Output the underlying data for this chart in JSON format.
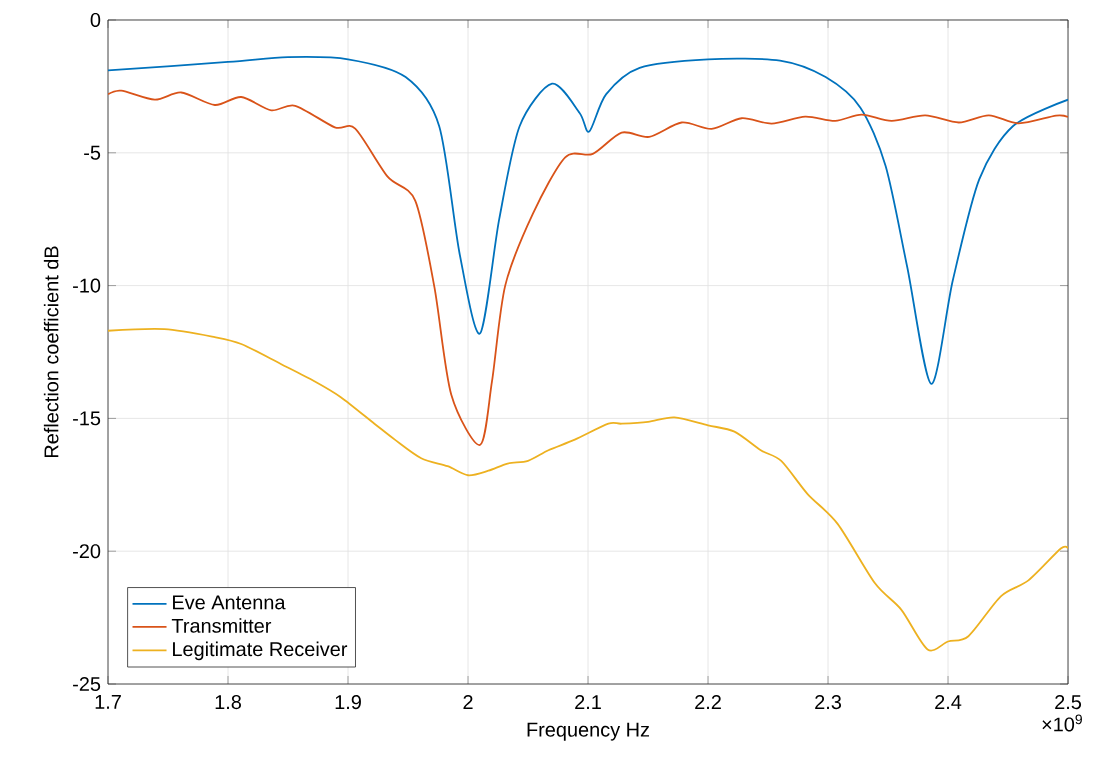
{
  "chart_data": {
    "type": "line",
    "xlabel": "Frequency Hz",
    "ylabel": "Reflection coefficient  dB",
    "xlim": [
      1.7,
      2.5
    ],
    "ylim": [
      -25,
      0
    ],
    "xticks": [
      1.7,
      1.8,
      1.9,
      2,
      2.1,
      2.2,
      2.3,
      2.4,
      2.5
    ],
    "yticks": [
      -25,
      -20,
      -15,
      -10,
      -5,
      0
    ],
    "grid": true,
    "legend": "bottom left",
    "line_style": "solid",
    "marker": "none",
    "annotations": [
      "×10$^{9}$"
    ],
    "series": [
      {
        "name": "Eve Antenna",
        "color": "#0072bd",
        "x": [
          1.7,
          1.8,
          1.85,
          1.9,
          1.948,
          1.976,
          1.993,
          2.01,
          2.026,
          2.043,
          2.07,
          2.093,
          2.101,
          2.115,
          2.143,
          2.2,
          2.26,
          2.298,
          2.327,
          2.348,
          2.366,
          2.386,
          2.404,
          2.426,
          2.454,
          2.5
        ],
        "values": [
          -1.9,
          -1.58,
          -1.4,
          -1.48,
          -2.15,
          -4.0,
          -8.8,
          -11.8,
          -7.5,
          -4.0,
          -2.4,
          -3.5,
          -4.2,
          -2.8,
          -1.8,
          -1.48,
          -1.53,
          -2.15,
          -3.3,
          -5.5,
          -9.3,
          -13.7,
          -9.8,
          -6.0,
          -4.0,
          -3.0
        ]
      },
      {
        "name": "Transmitter",
        "color": "#d95319",
        "x": [
          1.7,
          1.711,
          1.739,
          1.761,
          1.789,
          1.811,
          1.836,
          1.856,
          1.889,
          1.906,
          1.933,
          1.956,
          1.972,
          1.986,
          2.01,
          2.02,
          2.031,
          2.054,
          2.081,
          2.104,
          2.128,
          2.151,
          2.178,
          2.203,
          2.228,
          2.253,
          2.281,
          2.306,
          2.328,
          2.353,
          2.381,
          2.409,
          2.434,
          2.459,
          2.49,
          2.5
        ],
        "values": [
          -2.8,
          -2.66,
          -3.0,
          -2.73,
          -3.2,
          -2.9,
          -3.4,
          -3.23,
          -4.04,
          -4.09,
          -5.9,
          -6.8,
          -10.06,
          -14.1,
          -16.0,
          -13.6,
          -10.0,
          -7.3,
          -5.17,
          -5.04,
          -4.24,
          -4.4,
          -3.86,
          -4.1,
          -3.7,
          -3.9,
          -3.64,
          -3.8,
          -3.56,
          -3.8,
          -3.59,
          -3.86,
          -3.59,
          -3.89,
          -3.6,
          -3.65
        ]
      },
      {
        "name": "Legitimate Receiver",
        "color": "#edb120",
        "x": [
          1.7,
          1.747,
          1.789,
          1.811,
          1.844,
          1.872,
          1.894,
          1.922,
          1.939,
          1.961,
          1.983,
          2.0,
          2.017,
          2.033,
          2.05,
          2.067,
          2.089,
          2.117,
          2.128,
          2.15,
          2.172,
          2.2,
          2.222,
          2.244,
          2.261,
          2.283,
          2.308,
          2.339,
          2.361,
          2.383,
          2.4,
          2.417,
          2.444,
          2.467,
          2.494,
          2.5
        ],
        "values": [
          -11.7,
          -11.64,
          -11.94,
          -12.2,
          -12.95,
          -13.6,
          -14.2,
          -15.2,
          -15.8,
          -16.5,
          -16.8,
          -17.14,
          -16.97,
          -16.7,
          -16.6,
          -16.2,
          -15.8,
          -15.2,
          -15.2,
          -15.13,
          -14.96,
          -15.26,
          -15.5,
          -16.2,
          -16.6,
          -17.85,
          -18.97,
          -21.2,
          -22.2,
          -23.7,
          -23.4,
          -23.2,
          -21.7,
          -21.1,
          -19.9,
          -19.9
        ]
      }
    ]
  }
}
